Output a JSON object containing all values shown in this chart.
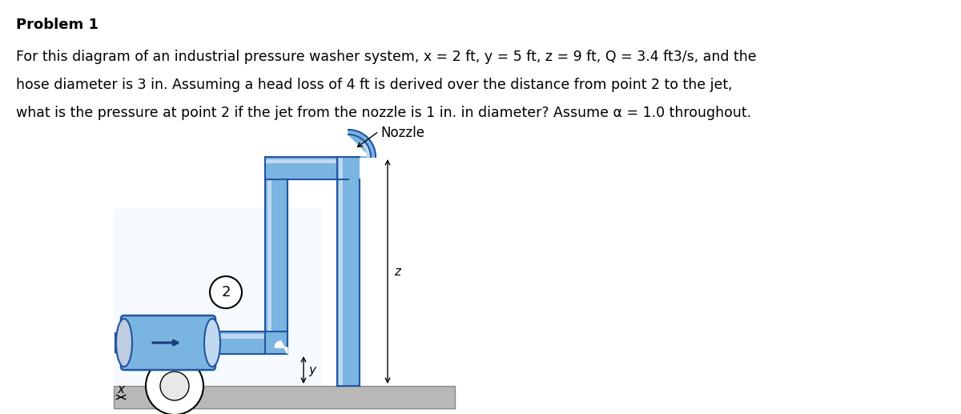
{
  "title": "Problem 1",
  "line1": "For this diagram of an industrial pressure washer system, x = 2 ft, y = 5 ft, z = 9 ft, Q = 3.4 ft3/s, and the",
  "line2": "hose diameter is 3 in. Assuming a head loss of 4 ft is derived over the distance from point 2 to the jet,",
  "line3": "what is the pressure at point 2 if the jet from the nozzle is 1 in. in diameter? Assume α = 1.0 throughout.",
  "pipe_face": "#7ab4e0",
  "pipe_edge": "#2255a0",
  "pipe_light": "#c0d8f0",
  "pipe_dark": "#4a80c0",
  "ground_face": "#b8b8b8",
  "ground_edge": "#888888",
  "bg": "#ffffff",
  "nozzle_label": "Nozzle",
  "label2": "2",
  "label_z": "z",
  "label_y": "y",
  "label_x": "x",
  "title_fontsize": 13,
  "body_fontsize": 12.5
}
